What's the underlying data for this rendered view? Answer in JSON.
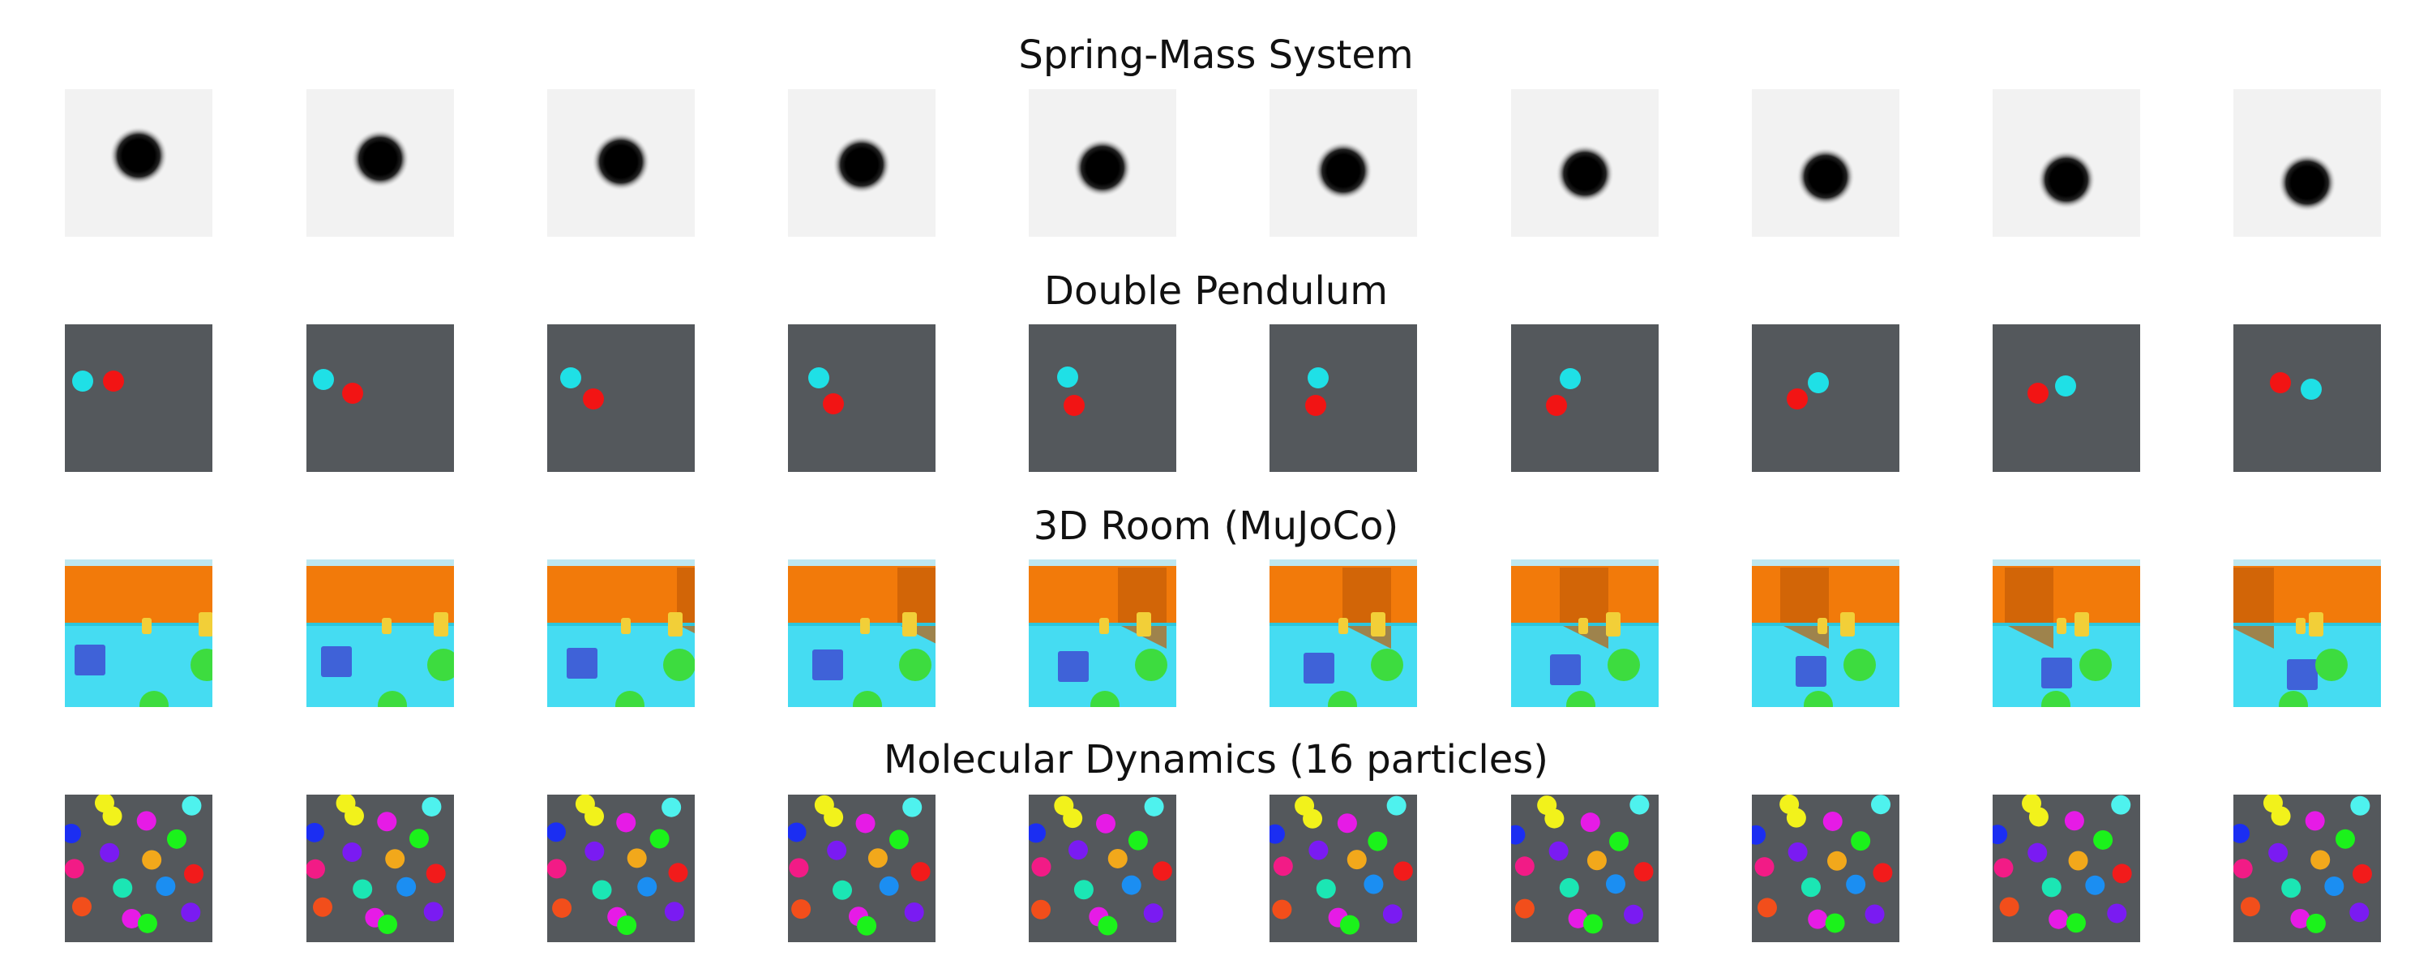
{
  "rows": [
    {
      "title": "Spring-Mass System",
      "kind": "spring",
      "frames": 10,
      "colors": {
        "bg": "#f2f2f2",
        "ball": "#000000"
      }
    },
    {
      "title": "Double Pendulum",
      "kind": "pendulum",
      "frames": 10,
      "colors": {
        "bg": "#54585c",
        "bob1": "#1fe0e6",
        "bob2": "#f21414"
      }
    },
    {
      "title": "3D Room (MuJoCo)",
      "kind": "room",
      "frames": 10,
      "colors": {
        "wall": "#f27a0a",
        "floor": "#45dcf2",
        "sky": "#bde7f0",
        "cube": "#3f62d8",
        "sphere": "#3ddc3f",
        "cylinder": "#f2cf38"
      }
    },
    {
      "title": "Molecular Dynamics (16 particles)",
      "kind": "molecules",
      "frames": 10,
      "colors": {
        "bg": "#54585c"
      }
    }
  ]
}
